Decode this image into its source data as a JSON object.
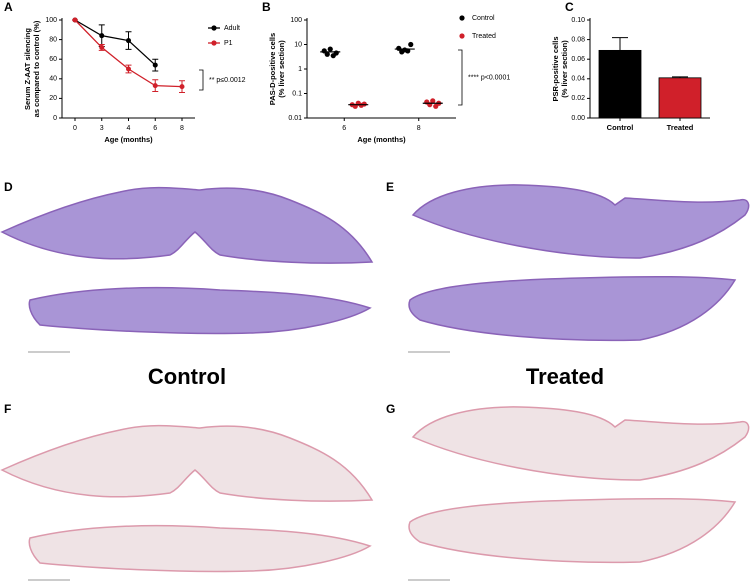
{
  "panel_labels": [
    "A",
    "B",
    "C",
    "D",
    "E",
    "F",
    "G"
  ],
  "chart_data": [
    {
      "type": "line",
      "categories": [
        "0",
        "3",
        "4",
        "6",
        "8"
      ],
      "xlabel": "Age (months)",
      "ylabel": [
        "Serum Z-AAT silencing",
        "as compared to control (%)"
      ],
      "ylim": [
        0,
        100
      ],
      "yticks": [
        0,
        20,
        40,
        60,
        80,
        100
      ],
      "legend": "right",
      "series": [
        {
          "name": "Adult",
          "color": "#000000",
          "values": [
            100,
            84,
            79,
            54,
            null
          ],
          "errors": [
            0,
            11,
            9,
            6,
            null
          ]
        },
        {
          "name": "P1",
          "color": "#d0202a",
          "values": [
            100,
            72,
            50,
            33,
            32
          ],
          "errors": [
            0,
            3,
            4,
            6,
            6
          ]
        }
      ],
      "annotation": "** p≤0.0012"
    },
    {
      "type": "dot",
      "log": true,
      "categories": [
        "6",
        "8"
      ],
      "xlabel": "Age (months)",
      "ylabel": [
        "PAS-D-positive cells",
        "(% liver section)"
      ],
      "ylim": [
        0.01,
        100
      ],
      "yticks": [
        0.01,
        0.1,
        1,
        10,
        100
      ],
      "legend": "right",
      "series": [
        {
          "name": "Control",
          "color": "#000000",
          "values": [
            [
              5.5,
              4,
              6.5,
              3.5,
              4.5
            ],
            [
              7,
              5,
              6,
              5.5,
              10
            ]
          ],
          "means": [
            5,
            6.5
          ]
        },
        {
          "name": "Treated",
          "color": "#d0202a",
          "values": [
            [
              0.035,
              0.03,
              0.04,
              0.033,
              0.037
            ],
            [
              0.045,
              0.035,
              0.05,
              0.03,
              0.04
            ]
          ],
          "means": [
            0.035,
            0.04
          ]
        }
      ],
      "annotation": "**** p<0.0001"
    },
    {
      "type": "bar",
      "categories": [
        "Control",
        "Treated"
      ],
      "values": [
        0.069,
        0.041
      ],
      "errors": [
        0.013,
        0.001
      ],
      "colors": [
        "#000000",
        "#d0202a"
      ],
      "ylabel": [
        "PSR-positive cells",
        "(% liver section)"
      ],
      "ylim": [
        0,
        0.1
      ],
      "yticks": [
        {
          "value": 0,
          "label": "0.00"
        },
        {
          "value": 0.02,
          "label": "0.02"
        },
        {
          "value": 0.04,
          "label": "0.04"
        },
        {
          "value": 0.06,
          "label": "0.06"
        },
        {
          "value": 0.08,
          "label": "0.08"
        },
        {
          "value": 0.1,
          "label": "0.10"
        }
      ]
    }
  ],
  "image_labels": [
    "Control",
    "Treated"
  ]
}
